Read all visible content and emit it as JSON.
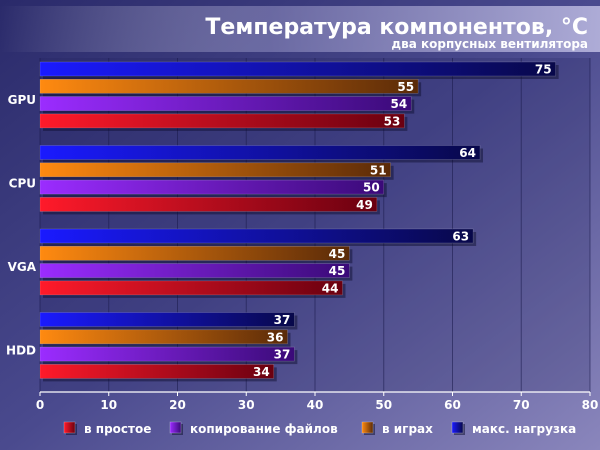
{
  "chart_data": {
    "type": "bar",
    "orientation": "horizontal",
    "title": "Температура компонентов, °C",
    "subtitle": "два корпусных вентилятора",
    "categories": [
      "GPU",
      "CPU",
      "VGA",
      "HDD"
    ],
    "xlim": [
      0,
      80
    ],
    "ticks": [
      0,
      10,
      20,
      30,
      40,
      50,
      60,
      70,
      80
    ],
    "grid": true,
    "legend_position": "bottom",
    "series": [
      {
        "name": "в простое",
        "color": "#e0001a",
        "values": [
          53,
          49,
          44,
          34
        ]
      },
      {
        "name": "копирование файлов",
        "color": "#8a1cff",
        "values": [
          54,
          50,
          45,
          37
        ]
      },
      {
        "name": "в играх",
        "color": "#ee7700",
        "values": [
          55,
          51,
          45,
          36
        ]
      },
      {
        "name": "макс. нагрузка",
        "color": "#1010f0",
        "values": [
          75,
          64,
          63,
          37
        ]
      }
    ]
  }
}
